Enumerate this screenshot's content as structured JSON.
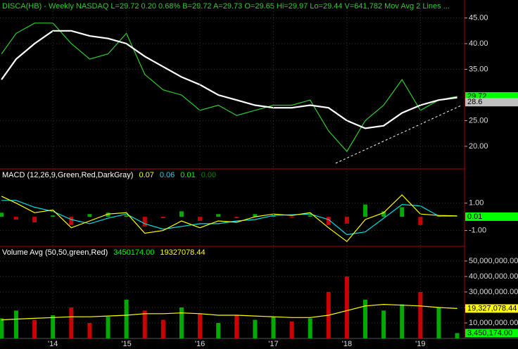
{
  "chart_data": [
    {
      "type": "line",
      "title": "DISCA(HB) - Weekly  NASDAQ  L=29.72  0.20  0.68%  B=29.72  A=29.73  O=29.65  Hi=29.97  Lo=29.44  V=641,782  Mov Avg 2 Lines ...",
      "title_color": "#33cc33",
      "xlim": [
        2013.28,
        2019.6
      ],
      "x": [
        2013.3,
        2013.5,
        2013.75,
        2014.0,
        2014.25,
        2014.5,
        2014.75,
        2015.0,
        2015.25,
        2015.5,
        2015.75,
        2016.0,
        2016.25,
        2016.5,
        2016.75,
        2017.0,
        2017.25,
        2017.5,
        2017.75,
        2018.0,
        2018.25,
        2018.5,
        2018.75,
        2019.0,
        2019.25,
        2019.5
      ],
      "ylim": [
        15.6,
        48.5
      ],
      "yticks": [
        {
          "value": 45,
          "label": "45.00"
        },
        {
          "value": 40,
          "label": "40.00"
        },
        {
          "value": 35,
          "label": "35.00"
        },
        {
          "value": 25,
          "label": "25.00"
        },
        {
          "value": 20,
          "label": "20.00"
        }
      ],
      "series": [
        {
          "style": "line",
          "color": "#33cc33",
          "width": 1.2,
          "values": [
            38,
            42,
            44,
            44,
            40,
            37,
            38,
            42,
            34,
            31,
            30,
            27,
            28,
            26,
            27,
            28,
            28,
            29,
            23,
            19,
            25,
            28,
            33,
            27,
            29,
            29.72
          ]
        },
        {
          "style": "line",
          "color": "#ffffff",
          "width": 2.2,
          "values": [
            33,
            37,
            40,
            42.5,
            42.5,
            41.5,
            41,
            40,
            37.5,
            35.5,
            33.5,
            32,
            30,
            29,
            28,
            27.5,
            27.5,
            28,
            27.5,
            25,
            23.5,
            24,
            26.5,
            28,
            29,
            29.5
          ]
        }
      ],
      "tags": [
        {
          "value": 29.72,
          "label": "29.72",
          "color": "#00ff00",
          "text_color": "#000000"
        },
        {
          "value": 28.6,
          "label": "28.6",
          "color": "#c0c0c0",
          "text_color": "#000000"
        }
      ]
    },
    {
      "type": "line",
      "title": "MACD (12,26,9,Green,Red,DarkGray)",
      "title_color": "#ffffff",
      "readouts": [
        {
          "text": "0.07",
          "color": "#ffff00"
        },
        {
          "text": "0.06",
          "color": "#00e0e0"
        },
        {
          "text": "0.01",
          "color": "#00ff00"
        },
        {
          "text": "0.00",
          "color": "#008800"
        }
      ],
      "xlim": [
        2013.28,
        2019.6
      ],
      "x": [
        2013.3,
        2013.5,
        2013.75,
        2014.0,
        2014.25,
        2014.5,
        2014.75,
        2015.0,
        2015.25,
        2015.5,
        2015.75,
        2016.0,
        2016.25,
        2016.5,
        2016.75,
        2017.0,
        2017.25,
        2017.5,
        2017.75,
        2018.0,
        2018.25,
        2018.5,
        2018.75,
        2019.0,
        2019.25,
        2019.5
      ],
      "ylim": [
        -2.15,
        3.5
      ],
      "yticks": [
        {
          "value": 1,
          "label": "1.00"
        },
        {
          "value": -1,
          "label": "-1.00"
        }
      ],
      "series": [
        {
          "style": "bar",
          "color": "#00aa00",
          "negative_color": "#cc0000",
          "values": [
            0.3,
            -0.2,
            -0.4,
            0.1,
            -0.6,
            0.2,
            0.3,
            0.1,
            -0.7,
            -0.1,
            0.4,
            -0.3,
            0.2,
            -0.1,
            0.2,
            0.1,
            -0.05,
            0.1,
            -0.6,
            -0.5,
            0.9,
            0.4,
            0.7,
            -0.6,
            0.05,
            0.01
          ]
        },
        {
          "style": "line",
          "color": "#00e0e0",
          "width": 1.2,
          "values": [
            1.2,
            1.2,
            0.7,
            0.4,
            -0.2,
            -0.5,
            -0.1,
            0.2,
            -0.5,
            -0.9,
            -0.7,
            -0.5,
            -0.5,
            -0.3,
            -0.2,
            0.1,
            0.15,
            0.2,
            -0.2,
            -1.3,
            -1.1,
            -0.1,
            0.9,
            0.8,
            0.05,
            0.06
          ]
        },
        {
          "style": "line",
          "color": "#ffff00",
          "width": 1.2,
          "values": [
            1.5,
            1.0,
            0.3,
            0.5,
            -0.8,
            -0.3,
            0.2,
            0.3,
            -1.2,
            -1.0,
            -0.3,
            -0.8,
            -0.3,
            -0.4,
            0,
            0.2,
            0.1,
            0.3,
            -0.8,
            -1.8,
            -0.2,
            0.3,
            1.6,
            0.2,
            0.1,
            0.07
          ]
        }
      ],
      "tags": [
        {
          "value": 0.01,
          "label": "0.01",
          "color": "#00ff00",
          "text_color": "#000000"
        }
      ]
    },
    {
      "type": "line",
      "title": "Volume Avg (50,50,green,Red)",
      "title_color": "#ffffff",
      "readouts": [
        {
          "text": "3450174.00",
          "color": "#00ff00"
        },
        {
          "text": "19327078.44",
          "color": "#ffff00"
        }
      ],
      "xlim": [
        2013.28,
        2019.6
      ],
      "xticks": [
        {
          "value": 2014,
          "label": "'14"
        },
        {
          "value": 2015,
          "label": "'15"
        },
        {
          "value": 2016,
          "label": "'16"
        },
        {
          "value": 2017,
          "label": "'17"
        },
        {
          "value": 2018,
          "label": "'18"
        },
        {
          "value": 2019,
          "label": "'19"
        }
      ],
      "x": [
        2013.3,
        2013.5,
        2013.75,
        2014.0,
        2014.25,
        2014.5,
        2014.75,
        2015.0,
        2015.25,
        2015.5,
        2015.75,
        2016.0,
        2016.25,
        2016.5,
        2016.75,
        2017.0,
        2017.25,
        2017.5,
        2017.75,
        2018.0,
        2018.25,
        2018.5,
        2018.75,
        2019.0,
        2019.25,
        2019.5
      ],
      "ylim": [
        0,
        59500000
      ],
      "yticks": [
        {
          "value": 50000000,
          "label": "50,000,000.00"
        },
        {
          "value": 40000000,
          "label": "40,000,000.00"
        },
        {
          "value": 30000000,
          "label": "30,000,000.00"
        },
        {
          "value": 20000000,
          "label": "20,000,000.00"
        },
        {
          "value": 10000000,
          "label": "10,000,000.00"
        }
      ],
      "series": [
        {
          "style": "bar",
          "color": "#00aa00",
          "colors": [
            "#00aa00",
            "#00aa00",
            "#cc0000",
            "#00aa00",
            "#cc0000",
            "#cc0000",
            "#00aa00",
            "#00aa00",
            "#cc0000",
            "#cc0000",
            "#00aa00",
            "#cc0000",
            "#00aa00",
            "#cc0000",
            "#00aa00",
            "#00aa00",
            "#cc0000",
            "#00aa00",
            "#cc0000",
            "#cc0000",
            "#00aa00",
            "#00aa00",
            "#00aa00",
            "#cc0000",
            "#00aa00",
            "#00aa00"
          ],
          "values": [
            13000000,
            18000000,
            12000000,
            15000000,
            20000000,
            10000000,
            14000000,
            25000000,
            18000000,
            12000000,
            20000000,
            16000000,
            10000000,
            15000000,
            12000000,
            14000000,
            11000000,
            13000000,
            30000000,
            40000000,
            25000000,
            18000000,
            22000000,
            30000000,
            20000000,
            3450174
          ]
        },
        {
          "style": "line",
          "color": "#ffff00",
          "width": 1.2,
          "values": [
            12000000,
            12500000,
            13000000,
            13500000,
            14000000,
            14000000,
            14500000,
            15000000,
            16000000,
            16000000,
            16500000,
            16000000,
            15000000,
            15000000,
            14500000,
            14000000,
            13500000,
            13500000,
            15000000,
            18000000,
            21000000,
            22000000,
            21500000,
            21000000,
            20000000,
            19327078.44
          ]
        }
      ],
      "tags": [
        {
          "value": 19327078.44,
          "label": "19,327,078.44",
          "color": "#ffff00",
          "text_color": "#000000"
        },
        {
          "value": 3450174,
          "label": "3,450,174.00",
          "color": "#00ff00",
          "text_color": "#000000"
        }
      ]
    }
  ]
}
